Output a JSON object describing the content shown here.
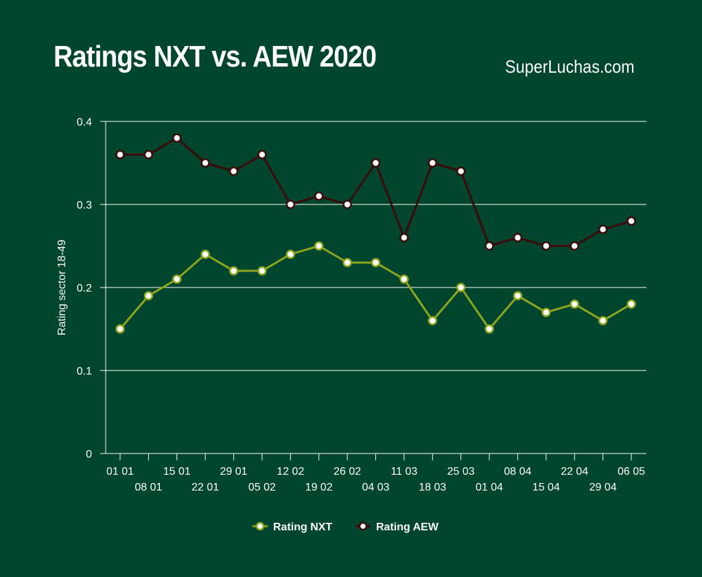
{
  "header": {
    "title": "Ratings NXT vs. AEW 2020",
    "source": "SuperLuchas.com"
  },
  "colors": {
    "background": "#00452e",
    "nxt_line": "#8ea51e",
    "aew_line": "#3d0a0a",
    "grid": "#ffffff",
    "text": "#ffffff"
  },
  "chart_data": {
    "type": "line",
    "title": "Ratings NXT vs. AEW 2020",
    "ylabel": "Rating sector 18-49",
    "xlabel": "",
    "ylim": [
      0,
      0.4
    ],
    "yticks": [
      "0",
      "0.1",
      "0.2",
      "0.3",
      "0.4"
    ],
    "grid": "horizontal",
    "legend_position": "bottom",
    "categories": [
      "01 01",
      "08 01",
      "15 01",
      "22 01",
      "29 01",
      "05 02",
      "12 02",
      "19 02",
      "26 02",
      "04 03",
      "11 03",
      "18 03",
      "25 03",
      "01 04",
      "08 04",
      "15 04",
      "22 04",
      "29 04",
      "06 05"
    ],
    "series": [
      {
        "name": "Rating NXT",
        "color": "#8ea51e",
        "values": [
          0.15,
          0.19,
          0.21,
          0.24,
          0.22,
          0.22,
          0.24,
          0.25,
          0.23,
          0.23,
          0.21,
          0.16,
          0.2,
          0.15,
          0.19,
          0.17,
          0.18,
          0.16,
          0.18
        ]
      },
      {
        "name": "Rating AEW",
        "color": "#3d0a0a",
        "values": [
          0.36,
          0.36,
          0.38,
          0.35,
          0.34,
          0.36,
          0.3,
          0.31,
          0.3,
          0.35,
          0.26,
          0.35,
          0.34,
          0.25,
          0.26,
          0.25,
          0.25,
          0.27,
          0.28
        ]
      }
    ]
  }
}
